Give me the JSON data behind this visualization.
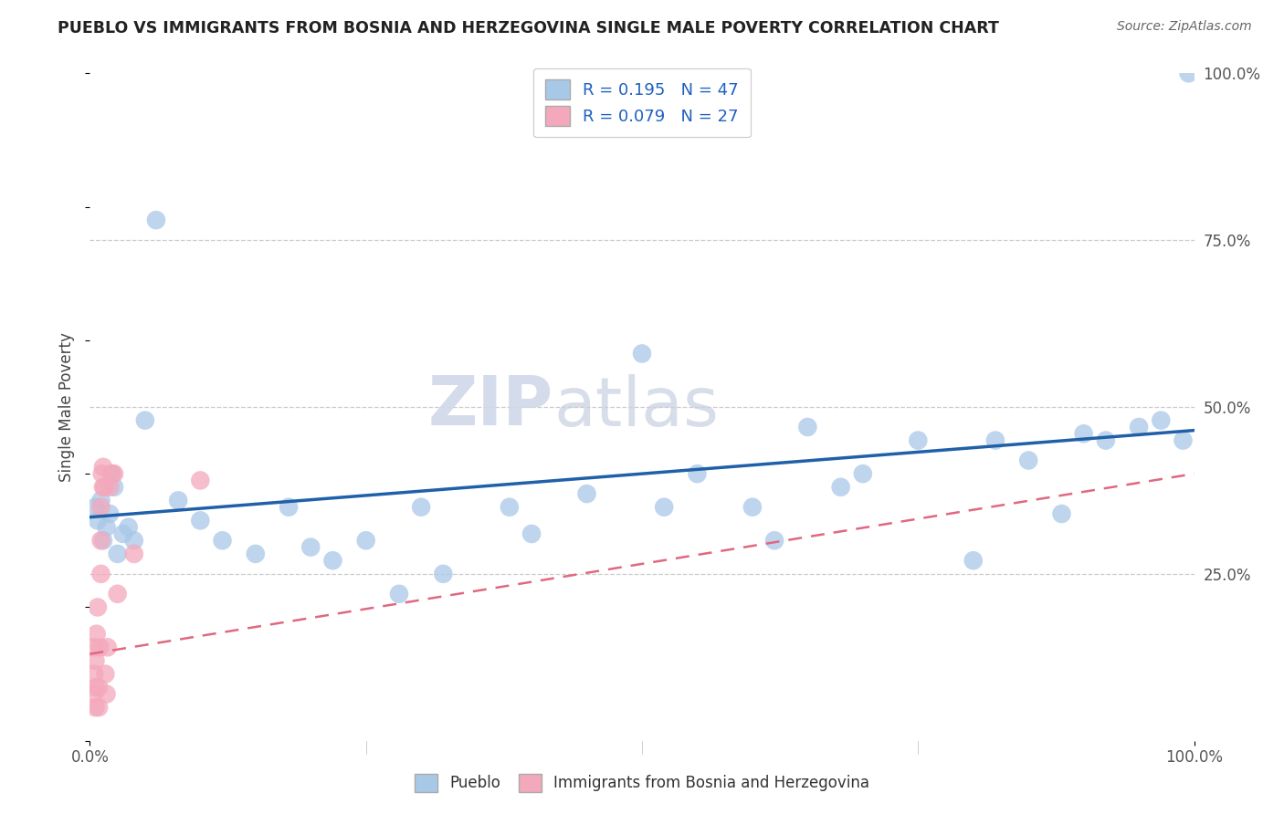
{
  "title": "PUEBLO VS IMMIGRANTS FROM BOSNIA AND HERZEGOVINA SINGLE MALE POVERTY CORRELATION CHART",
  "source": "Source: ZipAtlas.com",
  "ylabel": "Single Male Poverty",
  "legend1_r": "0.195",
  "legend1_n": "47",
  "legend2_r": "0.079",
  "legend2_n": "27",
  "pueblo_color": "#a8c8e8",
  "bosnia_color": "#f4a8bc",
  "pueblo_line_color": "#2060a8",
  "bosnia_line_color": "#e06880",
  "pueblo_scatter_x": [
    0.005,
    0.007,
    0.01,
    0.012,
    0.015,
    0.018,
    0.02,
    0.022,
    0.025,
    0.03,
    0.035,
    0.04,
    0.05,
    0.06,
    0.08,
    0.1,
    0.12,
    0.15,
    0.18,
    0.2,
    0.22,
    0.25,
    0.28,
    0.3,
    0.32,
    0.38,
    0.4,
    0.45,
    0.5,
    0.52,
    0.55,
    0.6,
    0.62,
    0.65,
    0.68,
    0.7,
    0.75,
    0.8,
    0.82,
    0.85,
    0.88,
    0.9,
    0.92,
    0.95,
    0.97,
    0.99,
    0.995
  ],
  "pueblo_scatter_y": [
    0.35,
    0.33,
    0.36,
    0.3,
    0.32,
    0.34,
    0.4,
    0.38,
    0.28,
    0.31,
    0.32,
    0.3,
    0.48,
    0.78,
    0.36,
    0.33,
    0.3,
    0.28,
    0.35,
    0.29,
    0.27,
    0.3,
    0.22,
    0.35,
    0.25,
    0.35,
    0.31,
    0.37,
    0.58,
    0.35,
    0.4,
    0.35,
    0.3,
    0.47,
    0.38,
    0.4,
    0.45,
    0.27,
    0.45,
    0.42,
    0.34,
    0.46,
    0.45,
    0.47,
    0.48,
    0.45,
    1.0
  ],
  "bosnia_scatter_x": [
    0.003,
    0.004,
    0.004,
    0.005,
    0.005,
    0.005,
    0.006,
    0.007,
    0.008,
    0.008,
    0.009,
    0.01,
    0.01,
    0.01,
    0.011,
    0.012,
    0.012,
    0.013,
    0.014,
    0.015,
    0.016,
    0.018,
    0.02,
    0.022,
    0.025,
    0.04,
    0.1
  ],
  "bosnia_scatter_y": [
    0.14,
    0.1,
    0.07,
    0.05,
    0.08,
    0.12,
    0.16,
    0.2,
    0.05,
    0.08,
    0.14,
    0.25,
    0.3,
    0.35,
    0.4,
    0.38,
    0.41,
    0.38,
    0.1,
    0.07,
    0.14,
    0.38,
    0.4,
    0.4,
    0.22,
    0.28,
    0.39
  ],
  "watermark_zip": "ZIP",
  "watermark_atlas": "atlas",
  "background_color": "#ffffff",
  "grid_color": "#cccccc",
  "tick_color": "#555555"
}
